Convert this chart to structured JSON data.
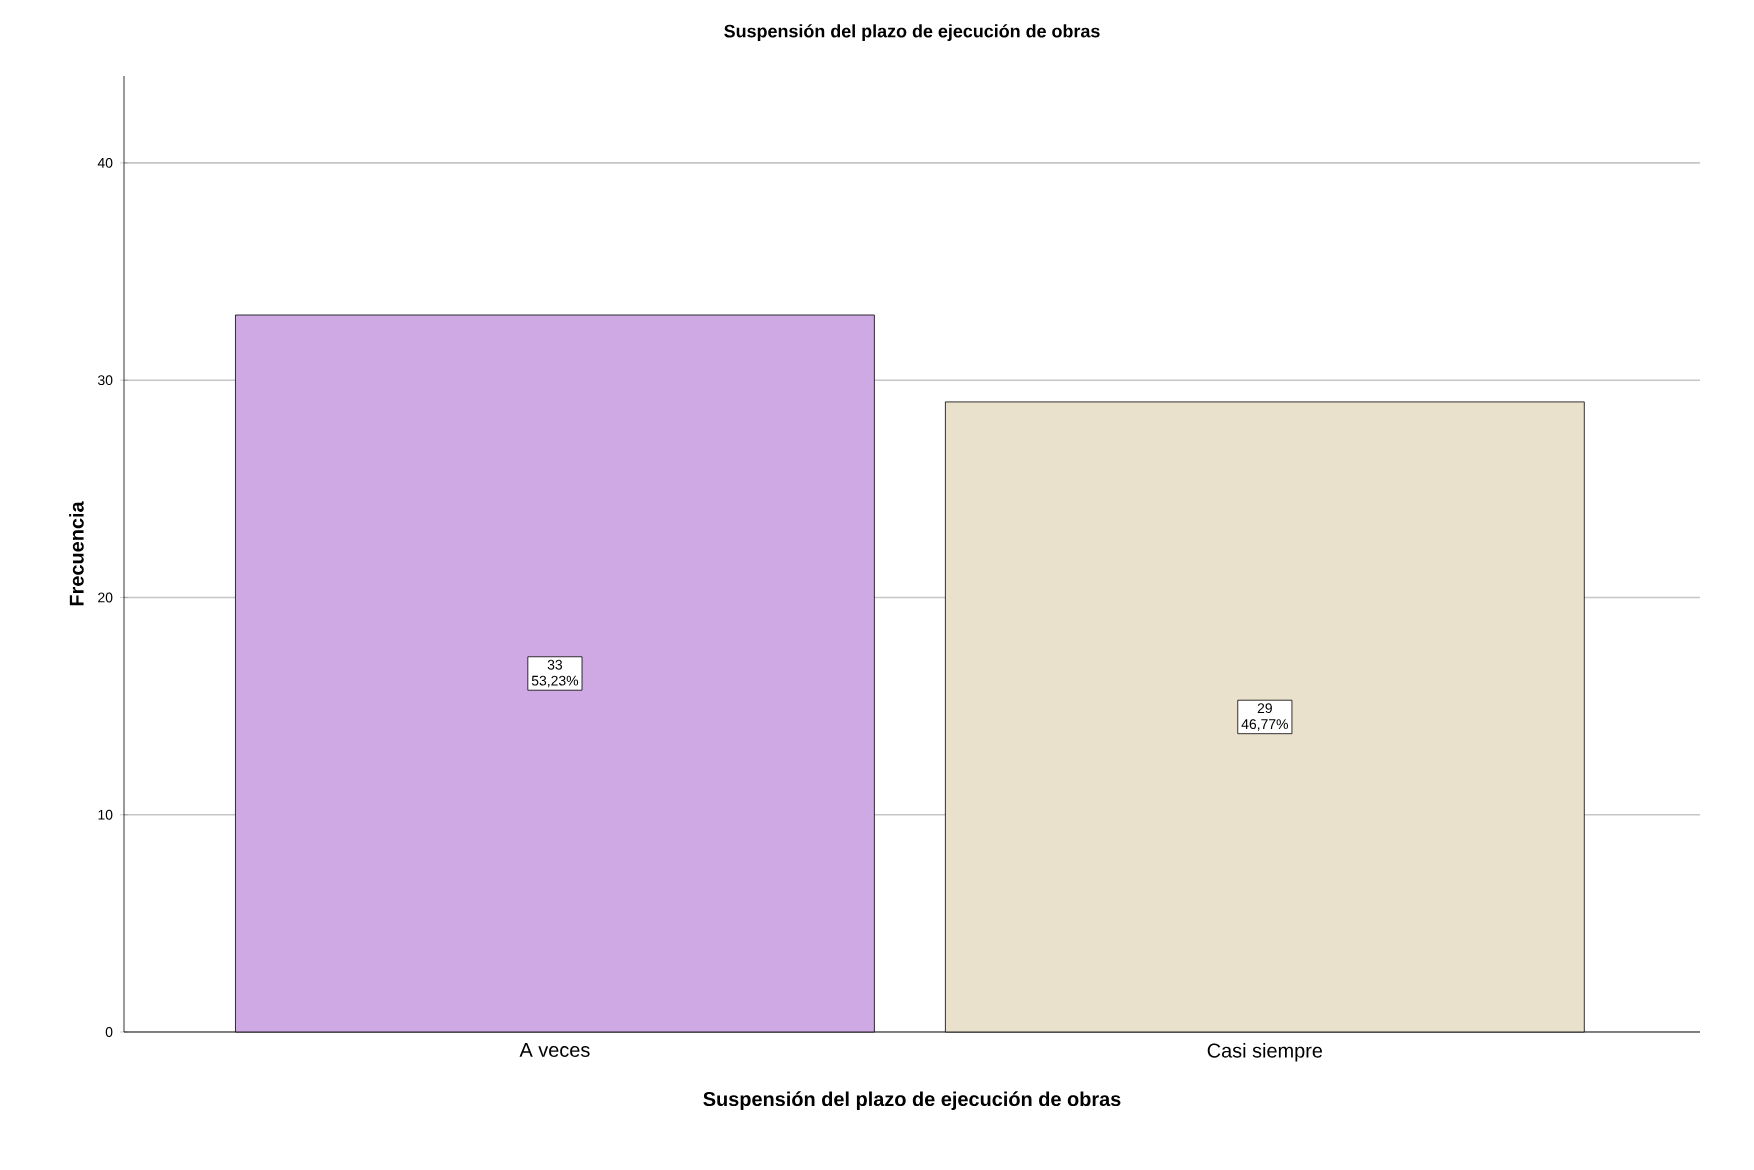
{
  "chart_data": {
    "type": "bar",
    "title": "Suspensión del plazo de ejecución de obras",
    "xlabel": "Suspensión del plazo de ejecución de obras",
    "ylabel": "Frecuencia",
    "categories": [
      "A veces",
      "Casi siempre"
    ],
    "values": [
      33,
      29
    ],
    "colors": [
      "#cfa9e3",
      "#e9e1cc"
    ],
    "value_labels": [
      "33 53,23%",
      "29 46,77%"
    ],
    "ylim": [
      0,
      44
    ],
    "yticks": [
      0,
      10,
      20,
      30,
      40
    ],
    "grid": "y"
  }
}
